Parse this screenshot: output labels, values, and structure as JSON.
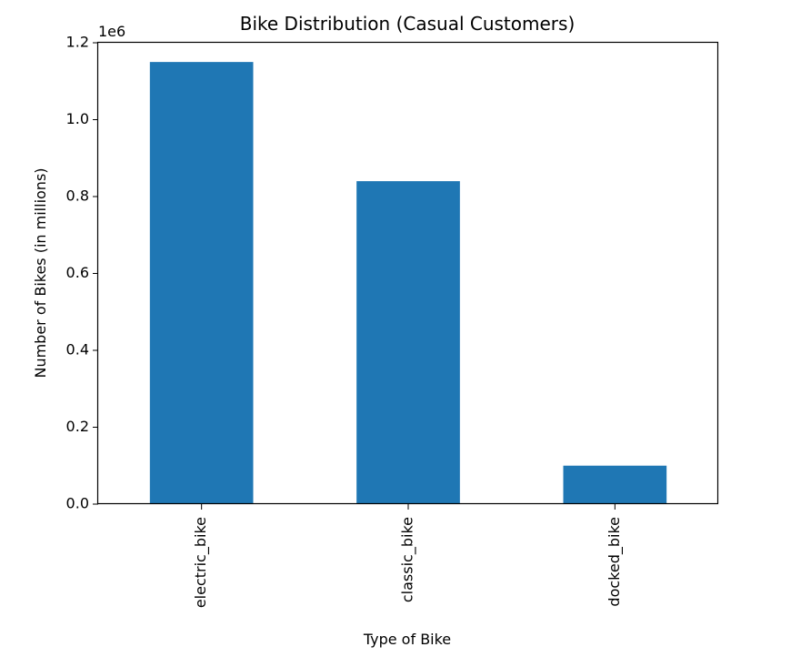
{
  "chart_data": {
    "type": "bar",
    "title": "Bike Distribution (Casual Customers)",
    "xlabel": "Type of Bike",
    "ylabel": "Number of Bikes (in millions)",
    "categories": [
      "electric_bike",
      "classic_bike",
      "docked_bike"
    ],
    "values": [
      1150000,
      840000,
      100000
    ],
    "ylim": [
      0,
      1200000
    ],
    "y_ticks": [
      0,
      200000,
      400000,
      600000,
      800000,
      1000000,
      1200000
    ],
    "y_tick_labels": [
      "0.0",
      "0.2",
      "0.4",
      "0.6",
      "0.8",
      "1.0",
      "1.2"
    ],
    "y_offset_label": "1e6",
    "bar_color": "#1f77b4",
    "grid": false,
    "legend": "none"
  }
}
